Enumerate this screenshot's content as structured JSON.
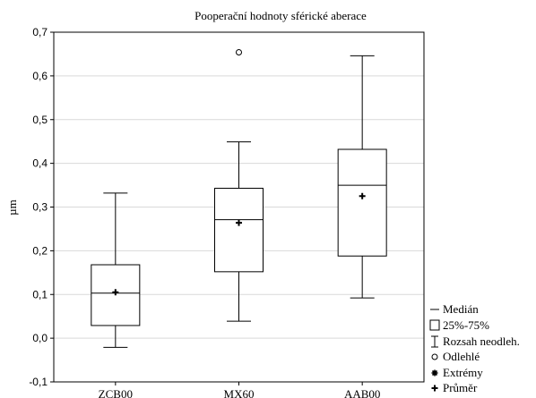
{
  "chart_data": {
    "type": "box",
    "title": "Pooperační hodnoty sférické aberace",
    "xlabel": "",
    "ylabel": "µm",
    "ylim": [
      -0.1,
      0.7
    ],
    "yticks": [
      -0.1,
      0.0,
      0.1,
      0.2,
      0.3,
      0.4,
      0.5,
      0.6,
      0.7
    ],
    "ytick_labels": [
      "-0,1",
      "0,0",
      "0,1",
      "0,2",
      "0,3",
      "0,4",
      "0,5",
      "0,6",
      "0,7"
    ],
    "grid": true,
    "legend_placement": "right-bottom",
    "categories": [
      "ZCB00",
      "MX60",
      "AAB00"
    ],
    "boxes": [
      {
        "category": "ZCB00",
        "whisker_low": -0.021,
        "q1": 0.029,
        "median": 0.103,
        "q3": 0.168,
        "whisker_high": 0.332,
        "mean": 0.105,
        "outliers": []
      },
      {
        "category": "MX60",
        "whisker_low": 0.039,
        "q1": 0.152,
        "median": 0.271,
        "q3": 0.343,
        "whisker_high": 0.449,
        "mean": 0.264,
        "outliers": [
          0.654
        ]
      },
      {
        "category": "AAB00",
        "whisker_low": 0.092,
        "q1": 0.188,
        "median": 0.35,
        "q3": 0.432,
        "whisker_high": 0.646,
        "mean": 0.325,
        "outliers": []
      }
    ],
    "legend": [
      {
        "symbol": "line",
        "label": "Medián"
      },
      {
        "symbol": "box",
        "label": "25%-75%"
      },
      {
        "symbol": "whisker",
        "label": "Rozsah neodleh."
      },
      {
        "symbol": "circle",
        "label": "Odlehlé"
      },
      {
        "symbol": "asterisk",
        "label": "Extrémy"
      },
      {
        "symbol": "plus",
        "label": "Průměr"
      }
    ]
  }
}
